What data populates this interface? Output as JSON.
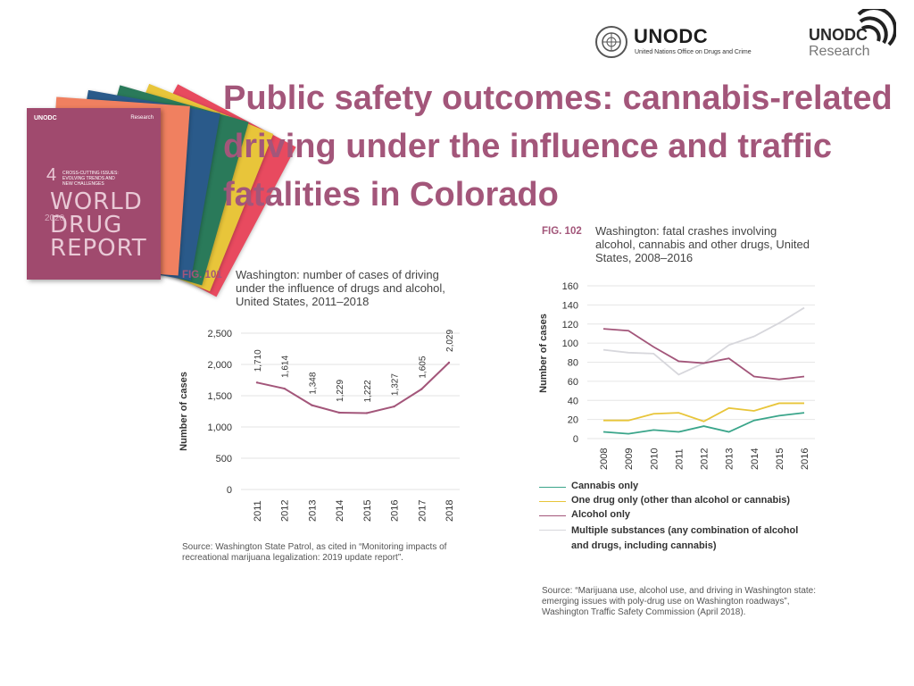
{
  "header": {
    "unodc_name": "UNODC",
    "unodc_full": "United Nations Office on Drugs and Crime",
    "research_name": "UNODC",
    "research_sub": "Research"
  },
  "cover": {
    "org": "UNODC",
    "number": "4",
    "subtitle": "CROSS-CUTTING ISSUES: EVOLVING TRENDS AND NEW CHALLENGES",
    "title_lines": [
      "WORLD",
      "DRUG",
      "REPORT"
    ],
    "year": "2020",
    "colors": [
      "#e84a5f",
      "#e8c53a",
      "#2a7a5a",
      "#2a5a8a",
      "#f08060"
    ]
  },
  "title": "Public safety outcomes: cannabis-related driving under the influence and traffic fatalities in Colorado",
  "chart_data": [
    {
      "type": "line",
      "fig_label": "FIG. 101",
      "title": "Washington: number of cases of driving under the influence of drugs and alcohol, United States, 2011–2018",
      "ylabel": "Number of cases",
      "xlabel": "",
      "x": [
        "2011",
        "2012",
        "2013",
        "2014",
        "2015",
        "2016",
        "2017",
        "2018"
      ],
      "series": [
        {
          "values": [
            1710,
            1614,
            1348,
            1229,
            1222,
            1327,
            1605,
            2029
          ],
          "color": "#a3567a"
        }
      ],
      "data_labels": [
        "1,710",
        "1,614",
        "1,348",
        "1,229",
        "1,222",
        "1,327",
        "1,605",
        "2,029"
      ],
      "yticks": [
        "0",
        "500",
        "1,000",
        "1,500",
        "2,000",
        "2,500"
      ],
      "ylim": [
        0,
        2500
      ],
      "grid": true,
      "source": "Source: Washington State Patrol, as cited in “Monitoring impacts of recreational marijuana legalization: 2019 update report”."
    },
    {
      "type": "line",
      "fig_label": "FIG. 102",
      "title": "Washington: fatal crashes involving alcohol, cannabis and other drugs, United States, 2008–2016",
      "ylabel": "Number of cases",
      "xlabel": "",
      "x": [
        "2008",
        "2009",
        "2010",
        "2011",
        "2012",
        "2013",
        "2014",
        "2015",
        "2016"
      ],
      "yticks": [
        "0",
        "20",
        "40",
        "60",
        "80",
        "100",
        "120",
        "140",
        "160"
      ],
      "ylim": [
        0,
        160
      ],
      "grid": true,
      "series": [
        {
          "name": "Cannabis only",
          "color": "#3aa58a",
          "values": [
            7,
            5,
            9,
            7,
            13,
            7,
            19,
            24,
            27
          ]
        },
        {
          "name": "One drug only (other than alcohol or cannabis)",
          "color": "#e8c53a",
          "values": [
            19,
            19,
            26,
            27,
            18,
            32,
            29,
            37,
            37
          ]
        },
        {
          "name": "Alcohol only",
          "color": "#a3567a",
          "values": [
            115,
            113,
            96,
            81,
            79,
            84,
            65,
            62,
            65
          ]
        },
        {
          "name": "Multiple substances (any combination of alcohol and drugs, including cannabis)",
          "color": "#d7d7dc",
          "values": [
            93,
            90,
            89,
            67,
            79,
            98,
            107,
            121,
            137
          ]
        }
      ],
      "legend_position": "bottom",
      "source": "Source: “Marijuana use, alcohol use, and driving in Washington state: emerging issues with poly-drug use on Washington roadways”, Washington Traffic Safety Commission (April 2018)."
    }
  ]
}
